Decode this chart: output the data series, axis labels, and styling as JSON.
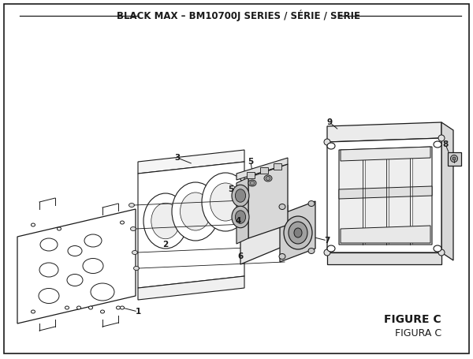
{
  "title": "BLACK MAX – BM10700J SERIES / SÉRIE / SERIE",
  "title_fontsize": 8.5,
  "background_color": "#ffffff",
  "line_color": "#1a1a1a",
  "figure_label": "FIGURE C",
  "figure_sublabel": "FIGURA C",
  "fig_label_fontsize": 10,
  "fig_sublabel_fontsize": 9
}
